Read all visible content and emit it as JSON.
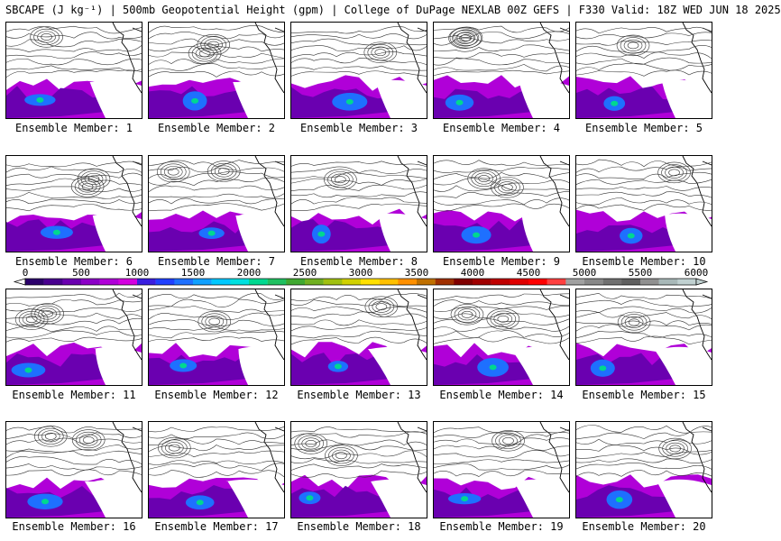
{
  "header": {
    "title": "SBCAPE (J kg⁻¹) | 500mb Geopotential Height (gpm) | College of DuPage NEXLAB 00Z GEFS | F330 Valid: 18Z WED JUN 18 2025"
  },
  "members": [
    {
      "label": "Ensemble Member: 1"
    },
    {
      "label": "Ensemble Member: 2"
    },
    {
      "label": "Ensemble Member: 3"
    },
    {
      "label": "Ensemble Member: 4"
    },
    {
      "label": "Ensemble Member: 5"
    },
    {
      "label": "Ensemble Member: 6"
    },
    {
      "label": "Ensemble Member: 7"
    },
    {
      "label": "Ensemble Member: 8"
    },
    {
      "label": "Ensemble Member: 9"
    },
    {
      "label": "Ensemble Member: 10"
    },
    {
      "label": "Ensemble Member: 11"
    },
    {
      "label": "Ensemble Member: 12"
    },
    {
      "label": "Ensemble Member: 13"
    },
    {
      "label": "Ensemble Member: 14"
    },
    {
      "label": "Ensemble Member: 15"
    },
    {
      "label": "Ensemble Member: 16"
    },
    {
      "label": "Ensemble Member: 17"
    },
    {
      "label": "Ensemble Member: 18"
    },
    {
      "label": "Ensemble Member: 19"
    },
    {
      "label": "Ensemble Member: 20"
    }
  ],
  "colorbar": {
    "ticks": [
      "0",
      "500",
      "1000",
      "1500",
      "2000",
      "2500",
      "3000",
      "3500",
      "4000",
      "4500",
      "5000",
      "5500",
      "6000"
    ],
    "colors": [
      "#2b006b",
      "#48008f",
      "#6a00b0",
      "#8c00c8",
      "#b000d8",
      "#d400e0",
      "#3a1ee0",
      "#2040ff",
      "#1e70ff",
      "#10a0ff",
      "#00c8ff",
      "#00e0e0",
      "#00d890",
      "#20c060",
      "#40a830",
      "#70b020",
      "#a0c010",
      "#d0d000",
      "#ffe000",
      "#ffc000",
      "#ff9000",
      "#c07000",
      "#a03000",
      "#800000",
      "#a00000",
      "#c00000",
      "#e00000",
      "#ff0000",
      "#ff4040",
      "#a0a0a0",
      "#888888",
      "#707070",
      "#606060",
      "#909090",
      "#a8b8b8",
      "#c0d0d0"
    ]
  }
}
